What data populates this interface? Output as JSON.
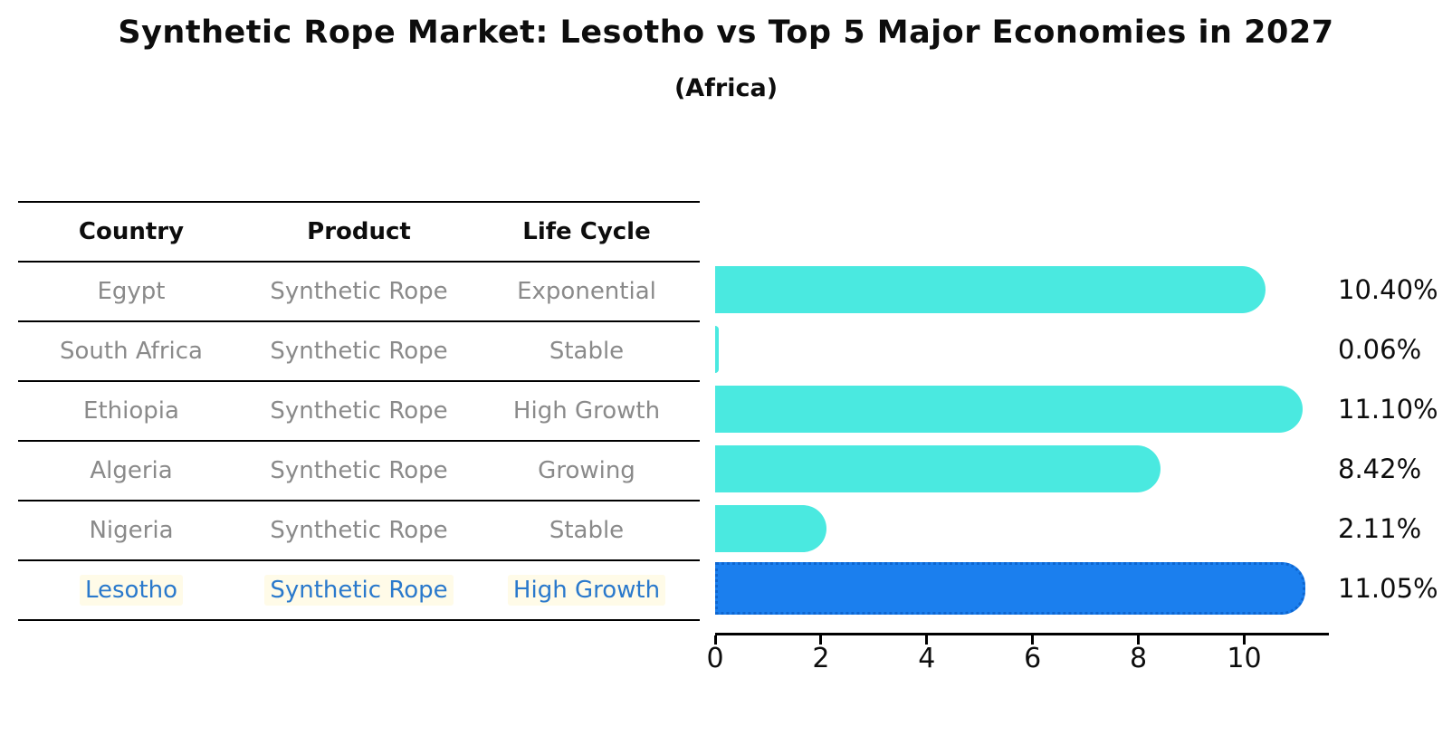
{
  "header": {
    "title": "Synthetic Rope Market: Lesotho vs Top 5 Major Economies in 2027",
    "subtitle": "(Africa)"
  },
  "table": {
    "headers": [
      "Country",
      "Product",
      "Life Cycle"
    ],
    "rows": [
      {
        "country": "Egypt",
        "product": "Synthetic Rope",
        "life_cycle": "Exponential",
        "highlight": false
      },
      {
        "country": "South Africa",
        "product": "Synthetic Rope",
        "life_cycle": "Stable",
        "highlight": false
      },
      {
        "country": "Ethiopia",
        "product": "Synthetic Rope",
        "life_cycle": "High Growth",
        "highlight": false
      },
      {
        "country": "Algeria",
        "product": "Synthetic Rope",
        "life_cycle": "Growing",
        "highlight": false
      },
      {
        "country": "Nigeria",
        "product": "Synthetic Rope",
        "life_cycle": "Stable",
        "highlight": false
      },
      {
        "country": "Lesotho",
        "product": "Synthetic Rope",
        "life_cycle": "High Growth",
        "highlight": true
      }
    ]
  },
  "chart_data": {
    "type": "bar",
    "orientation": "horizontal",
    "title": "Synthetic Rope Market: Lesotho vs Top 5 Major Economies in 2027",
    "subtitle": "(Africa)",
    "categories": [
      "Egypt",
      "South Africa",
      "Ethiopia",
      "Algeria",
      "Nigeria",
      "Lesotho"
    ],
    "values": [
      10.4,
      0.06,
      11.1,
      8.42,
      2.11,
      11.05
    ],
    "value_labels": [
      "10.40%",
      "0.06%",
      "11.10%",
      "8.42%",
      "2.11%",
      "11.05%"
    ],
    "xlim": [
      0,
      11.6
    ],
    "xticks": [
      "0",
      "2",
      "4",
      "6",
      "8",
      "10"
    ],
    "xtick_values": [
      0,
      2,
      4,
      6,
      8,
      10
    ],
    "legend": "none",
    "grid": false,
    "colors": {
      "bar": "#4ae9e0",
      "highlight_bar": "#1b7fee",
      "highlight_border": "#0e66d0",
      "highlight_text": "#2a79cc",
      "body_text": "#8a8a8a",
      "axis": "#000000"
    },
    "highlight_index": 5
  }
}
